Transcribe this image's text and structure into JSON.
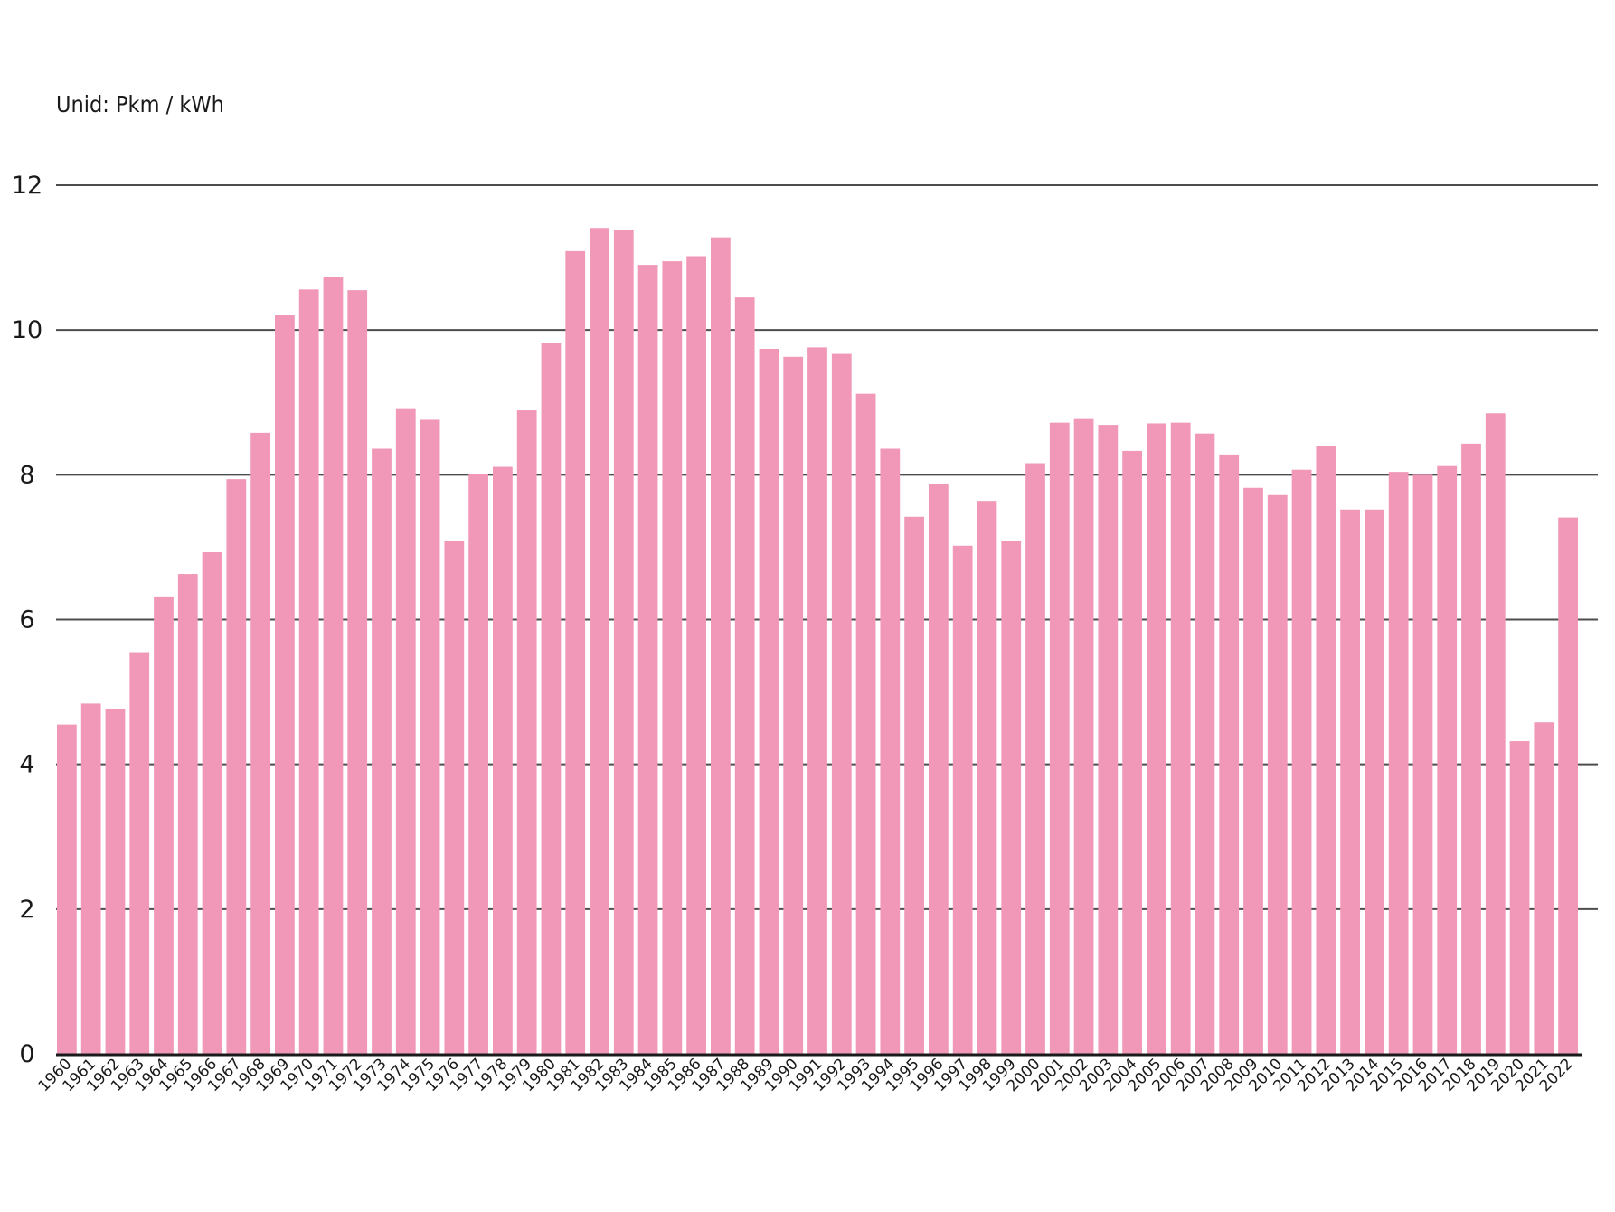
{
  "chart_data": {
    "type": "bar",
    "title": "",
    "xlabel": "",
    "ylabel": "",
    "unit_label": "Unid: Pkm / kWh",
    "ylim": [
      0,
      12
    ],
    "yticks": [
      0,
      2,
      4,
      6,
      8,
      10,
      12
    ],
    "grid": true,
    "legend": "none",
    "bar_color": "#f198b8",
    "grid_color": "#4d4d4d",
    "axis_color": "#1a1a1a",
    "categories": [
      "1960",
      "1961",
      "1962",
      "1963",
      "1964",
      "1965",
      "1966",
      "1967",
      "1968",
      "1969",
      "1970",
      "1971",
      "1972",
      "1973",
      "1974",
      "1975",
      "1976",
      "1977",
      "1978",
      "1979",
      "1980",
      "1981",
      "1982",
      "1983",
      "1984",
      "1985",
      "1986",
      "1987",
      "1988",
      "1989",
      "1990",
      "1991",
      "1992",
      "1993",
      "1994",
      "1995",
      "1996",
      "1997",
      "1998",
      "1999",
      "2000",
      "2001",
      "2002",
      "2003",
      "2004",
      "2005",
      "2006",
      "2007",
      "2008",
      "2009",
      "2010",
      "2011",
      "2012",
      "2013",
      "2014",
      "2015",
      "2016",
      "2017",
      "2018",
      "2019",
      "2020",
      "2021",
      "2022"
    ],
    "values": [
      4.55,
      4.84,
      4.77,
      5.55,
      6.32,
      6.63,
      6.93,
      7.94,
      8.58,
      10.21,
      10.56,
      10.73,
      10.55,
      8.36,
      8.92,
      8.76,
      7.08,
      8.01,
      8.11,
      8.89,
      9.82,
      11.09,
      11.41,
      11.38,
      10.9,
      10.95,
      11.02,
      11.28,
      10.45,
      9.74,
      9.63,
      9.76,
      9.67,
      9.12,
      8.36,
      7.42,
      7.87,
      7.02,
      7.64,
      7.08,
      8.16,
      8.72,
      8.77,
      8.69,
      8.33,
      8.71,
      8.72,
      8.57,
      8.28,
      7.82,
      7.72,
      8.07,
      8.4,
      7.52,
      7.52,
      8.04,
      8.0,
      8.12,
      8.43,
      8.85,
      4.32,
      4.58,
      7.41
    ]
  }
}
